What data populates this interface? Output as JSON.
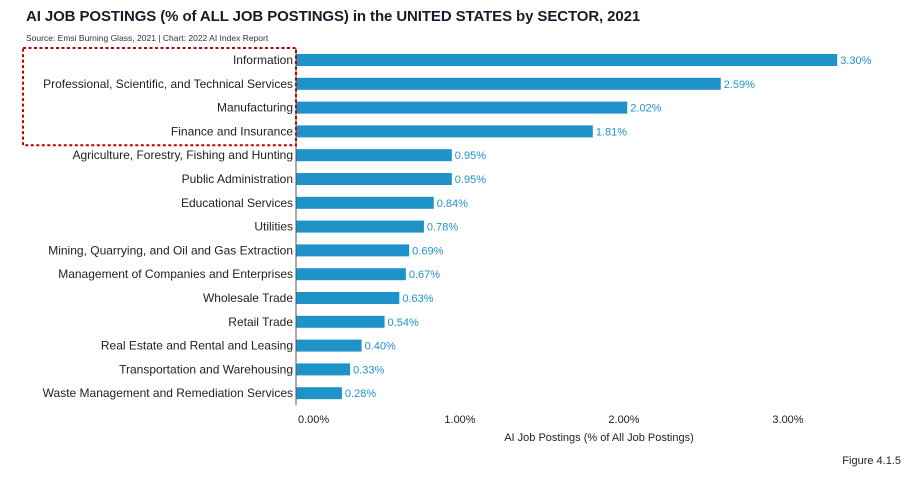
{
  "title": "AI JOB POSTINGS (% of ALL JOB POSTINGS) in the UNITED STATES by SECTOR, 2021",
  "source": "Source: Emsi Burning Glass, 2021 | Chart: 2022 AI Index Report",
  "figure_label": "Figure 4.1.5",
  "colors": {
    "bar": "#1f93c9",
    "value_text": "#1f93c9",
    "highlight_border": "#c00000"
  },
  "chart_data": {
    "type": "bar",
    "orientation": "horizontal",
    "title": "AI JOB POSTINGS (% of ALL JOB POSTINGS) in the UNITED STATES by SECTOR, 2021",
    "xlabel": "AI Job Postings (% of All Job Postings)",
    "ylabel": "",
    "xlim": [
      0,
      3.5
    ],
    "xticks": [
      0,
      1,
      2,
      3
    ],
    "xtick_labels": [
      "0.00%",
      "1.00%",
      "2.00%",
      "3.00%"
    ],
    "grid": false,
    "highlighted_categories": [
      "Information",
      "Professional, Scientific, and Technical Services",
      "Manufacturing",
      "Finance and Insurance"
    ],
    "categories": [
      "Information",
      "Professional, Scientific, and Technical Services",
      "Manufacturing",
      "Finance and Insurance",
      "Agriculture, Forestry, Fishing and Hunting",
      "Public Administration",
      "Educational Services",
      "Utilities",
      "Mining, Quarrying, and Oil and Gas Extraction",
      "Management of Companies and Enterprises",
      "Wholesale Trade",
      "Retail Trade",
      "Real Estate and Rental and Leasing",
      "Transportation and Warehousing",
      "Waste Management and Remediation Services"
    ],
    "values": [
      3.3,
      2.59,
      2.02,
      1.81,
      0.95,
      0.95,
      0.84,
      0.78,
      0.69,
      0.67,
      0.63,
      0.54,
      0.4,
      0.33,
      0.28
    ],
    "value_labels": [
      "3.30%",
      "2.59%",
      "2.02%",
      "1.81%",
      "0.95%",
      "0.95%",
      "0.84%",
      "0.78%",
      "0.69%",
      "0.67%",
      "0.63%",
      "0.54%",
      "0.40%",
      "0.33%",
      "0.28%"
    ]
  }
}
